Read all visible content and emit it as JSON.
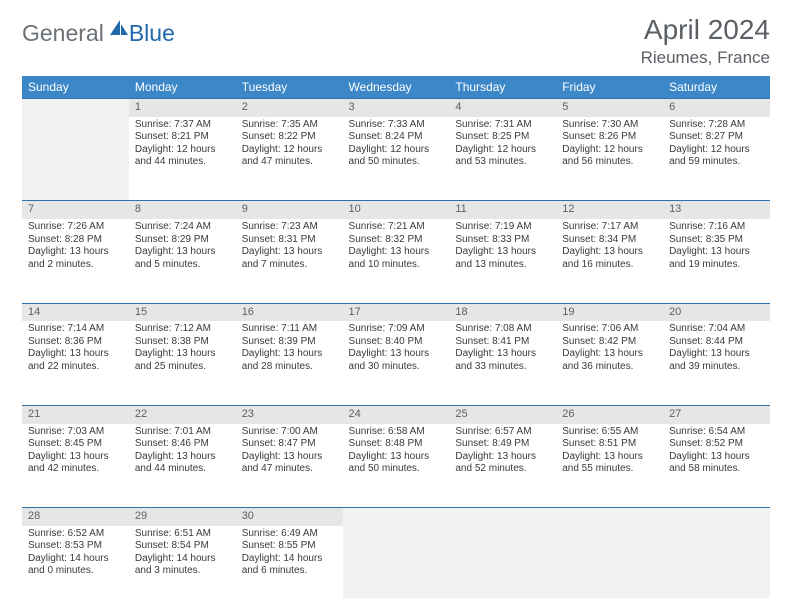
{
  "brand": {
    "part1": "General",
    "part2": "Blue"
  },
  "title": "April 2024",
  "location": "Rieumes, France",
  "accent_color": "#3c87c8",
  "rule_color": "#2f6faa",
  "daynum_bg": "#e6e6e6",
  "empty_bg": "#f2f2f2",
  "text_color": "#3a3a3a",
  "muted_color": "#5b6066",
  "logo_color": "#2169ab",
  "weekdays": [
    "Sunday",
    "Monday",
    "Tuesday",
    "Wednesday",
    "Thursday",
    "Friday",
    "Saturday"
  ],
  "weeks": [
    [
      null,
      {
        "n": "1",
        "sr": "7:37 AM",
        "ss": "8:21 PM",
        "dl": "12 hours and 44 minutes."
      },
      {
        "n": "2",
        "sr": "7:35 AM",
        "ss": "8:22 PM",
        "dl": "12 hours and 47 minutes."
      },
      {
        "n": "3",
        "sr": "7:33 AM",
        "ss": "8:24 PM",
        "dl": "12 hours and 50 minutes."
      },
      {
        "n": "4",
        "sr": "7:31 AM",
        "ss": "8:25 PM",
        "dl": "12 hours and 53 minutes."
      },
      {
        "n": "5",
        "sr": "7:30 AM",
        "ss": "8:26 PM",
        "dl": "12 hours and 56 minutes."
      },
      {
        "n": "6",
        "sr": "7:28 AM",
        "ss": "8:27 PM",
        "dl": "12 hours and 59 minutes."
      }
    ],
    [
      {
        "n": "7",
        "sr": "7:26 AM",
        "ss": "8:28 PM",
        "dl": "13 hours and 2 minutes."
      },
      {
        "n": "8",
        "sr": "7:24 AM",
        "ss": "8:29 PM",
        "dl": "13 hours and 5 minutes."
      },
      {
        "n": "9",
        "sr": "7:23 AM",
        "ss": "8:31 PM",
        "dl": "13 hours and 7 minutes."
      },
      {
        "n": "10",
        "sr": "7:21 AM",
        "ss": "8:32 PM",
        "dl": "13 hours and 10 minutes."
      },
      {
        "n": "11",
        "sr": "7:19 AM",
        "ss": "8:33 PM",
        "dl": "13 hours and 13 minutes."
      },
      {
        "n": "12",
        "sr": "7:17 AM",
        "ss": "8:34 PM",
        "dl": "13 hours and 16 minutes."
      },
      {
        "n": "13",
        "sr": "7:16 AM",
        "ss": "8:35 PM",
        "dl": "13 hours and 19 minutes."
      }
    ],
    [
      {
        "n": "14",
        "sr": "7:14 AM",
        "ss": "8:36 PM",
        "dl": "13 hours and 22 minutes."
      },
      {
        "n": "15",
        "sr": "7:12 AM",
        "ss": "8:38 PM",
        "dl": "13 hours and 25 minutes."
      },
      {
        "n": "16",
        "sr": "7:11 AM",
        "ss": "8:39 PM",
        "dl": "13 hours and 28 minutes."
      },
      {
        "n": "17",
        "sr": "7:09 AM",
        "ss": "8:40 PM",
        "dl": "13 hours and 30 minutes."
      },
      {
        "n": "18",
        "sr": "7:08 AM",
        "ss": "8:41 PM",
        "dl": "13 hours and 33 minutes."
      },
      {
        "n": "19",
        "sr": "7:06 AM",
        "ss": "8:42 PM",
        "dl": "13 hours and 36 minutes."
      },
      {
        "n": "20",
        "sr": "7:04 AM",
        "ss": "8:44 PM",
        "dl": "13 hours and 39 minutes."
      }
    ],
    [
      {
        "n": "21",
        "sr": "7:03 AM",
        "ss": "8:45 PM",
        "dl": "13 hours and 42 minutes."
      },
      {
        "n": "22",
        "sr": "7:01 AM",
        "ss": "8:46 PM",
        "dl": "13 hours and 44 minutes."
      },
      {
        "n": "23",
        "sr": "7:00 AM",
        "ss": "8:47 PM",
        "dl": "13 hours and 47 minutes."
      },
      {
        "n": "24",
        "sr": "6:58 AM",
        "ss": "8:48 PM",
        "dl": "13 hours and 50 minutes."
      },
      {
        "n": "25",
        "sr": "6:57 AM",
        "ss": "8:49 PM",
        "dl": "13 hours and 52 minutes."
      },
      {
        "n": "26",
        "sr": "6:55 AM",
        "ss": "8:51 PM",
        "dl": "13 hours and 55 minutes."
      },
      {
        "n": "27",
        "sr": "6:54 AM",
        "ss": "8:52 PM",
        "dl": "13 hours and 58 minutes."
      }
    ],
    [
      {
        "n": "28",
        "sr": "6:52 AM",
        "ss": "8:53 PM",
        "dl": "14 hours and 0 minutes."
      },
      {
        "n": "29",
        "sr": "6:51 AM",
        "ss": "8:54 PM",
        "dl": "14 hours and 3 minutes."
      },
      {
        "n": "30",
        "sr": "6:49 AM",
        "ss": "8:55 PM",
        "dl": "14 hours and 6 minutes."
      },
      null,
      null,
      null,
      null
    ]
  ],
  "labels": {
    "sunrise": "Sunrise:",
    "sunset": "Sunset:",
    "daylight": "Daylight:"
  }
}
